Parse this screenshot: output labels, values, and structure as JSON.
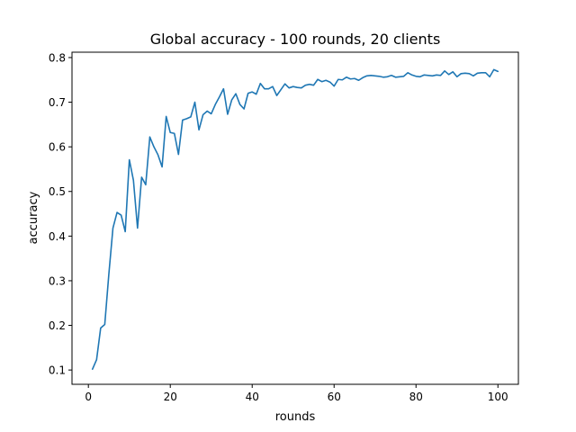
{
  "chart_data": {
    "type": "line",
    "title": "Global accuracy - 100 rounds, 20 clients",
    "xlabel": "rounds",
    "ylabel": "accuracy",
    "xlim": [
      -4,
      105
    ],
    "ylim": [
      0.068,
      0.812
    ],
    "xticks": [
      0,
      20,
      40,
      60,
      80,
      100
    ],
    "yticks": [
      0.1,
      0.2,
      0.3,
      0.4,
      0.5,
      0.6,
      0.7,
      0.8
    ],
    "xtick_labels": [
      "0",
      "20",
      "40",
      "60",
      "80",
      "100"
    ],
    "ytick_labels": [
      "0.1",
      "0.2",
      "0.3",
      "0.4",
      "0.5",
      "0.6",
      "0.7",
      "0.8"
    ],
    "grid": false,
    "legend": "none",
    "series": [
      {
        "color": "#1f77b4",
        "x": [
          1,
          2,
          3,
          4,
          5,
          6,
          7,
          8,
          9,
          10,
          11,
          12,
          13,
          14,
          15,
          16,
          17,
          18,
          19,
          20,
          21,
          22,
          23,
          24,
          25,
          26,
          27,
          28,
          29,
          30,
          31,
          32,
          33,
          34,
          35,
          36,
          37,
          38,
          39,
          40,
          41,
          42,
          43,
          44,
          45,
          46,
          47,
          48,
          49,
          50,
          51,
          52,
          53,
          54,
          55,
          56,
          57,
          58,
          59,
          60,
          61,
          62,
          63,
          64,
          65,
          66,
          67,
          68,
          69,
          70,
          71,
          72,
          73,
          74,
          75,
          76,
          77,
          78,
          79,
          80,
          81,
          82,
          83,
          84,
          85,
          86,
          87,
          88,
          89,
          90,
          91,
          92,
          93,
          94,
          95,
          96,
          97,
          98,
          99,
          100
        ],
        "y": [
          0.102,
          0.123,
          0.194,
          0.202,
          0.315,
          0.418,
          0.453,
          0.447,
          0.41,
          0.571,
          0.525,
          0.418,
          0.532,
          0.515,
          0.622,
          0.6,
          0.582,
          0.555,
          0.668,
          0.632,
          0.63,
          0.583,
          0.66,
          0.663,
          0.667,
          0.7,
          0.638,
          0.672,
          0.68,
          0.674,
          0.695,
          0.712,
          0.73,
          0.673,
          0.705,
          0.719,
          0.695,
          0.685,
          0.72,
          0.723,
          0.718,
          0.742,
          0.73,
          0.73,
          0.735,
          0.715,
          0.728,
          0.741,
          0.732,
          0.735,
          0.733,
          0.732,
          0.738,
          0.74,
          0.738,
          0.751,
          0.746,
          0.749,
          0.745,
          0.736,
          0.751,
          0.75,
          0.756,
          0.752,
          0.753,
          0.749,
          0.755,
          0.759,
          0.76,
          0.759,
          0.758,
          0.756,
          0.757,
          0.76,
          0.756,
          0.757,
          0.758,
          0.766,
          0.761,
          0.758,
          0.757,
          0.761,
          0.76,
          0.759,
          0.761,
          0.76,
          0.77,
          0.762,
          0.768,
          0.757,
          0.764,
          0.765,
          0.764,
          0.759,
          0.765,
          0.766,
          0.766,
          0.757,
          0.773,
          0.769
        ]
      }
    ]
  }
}
